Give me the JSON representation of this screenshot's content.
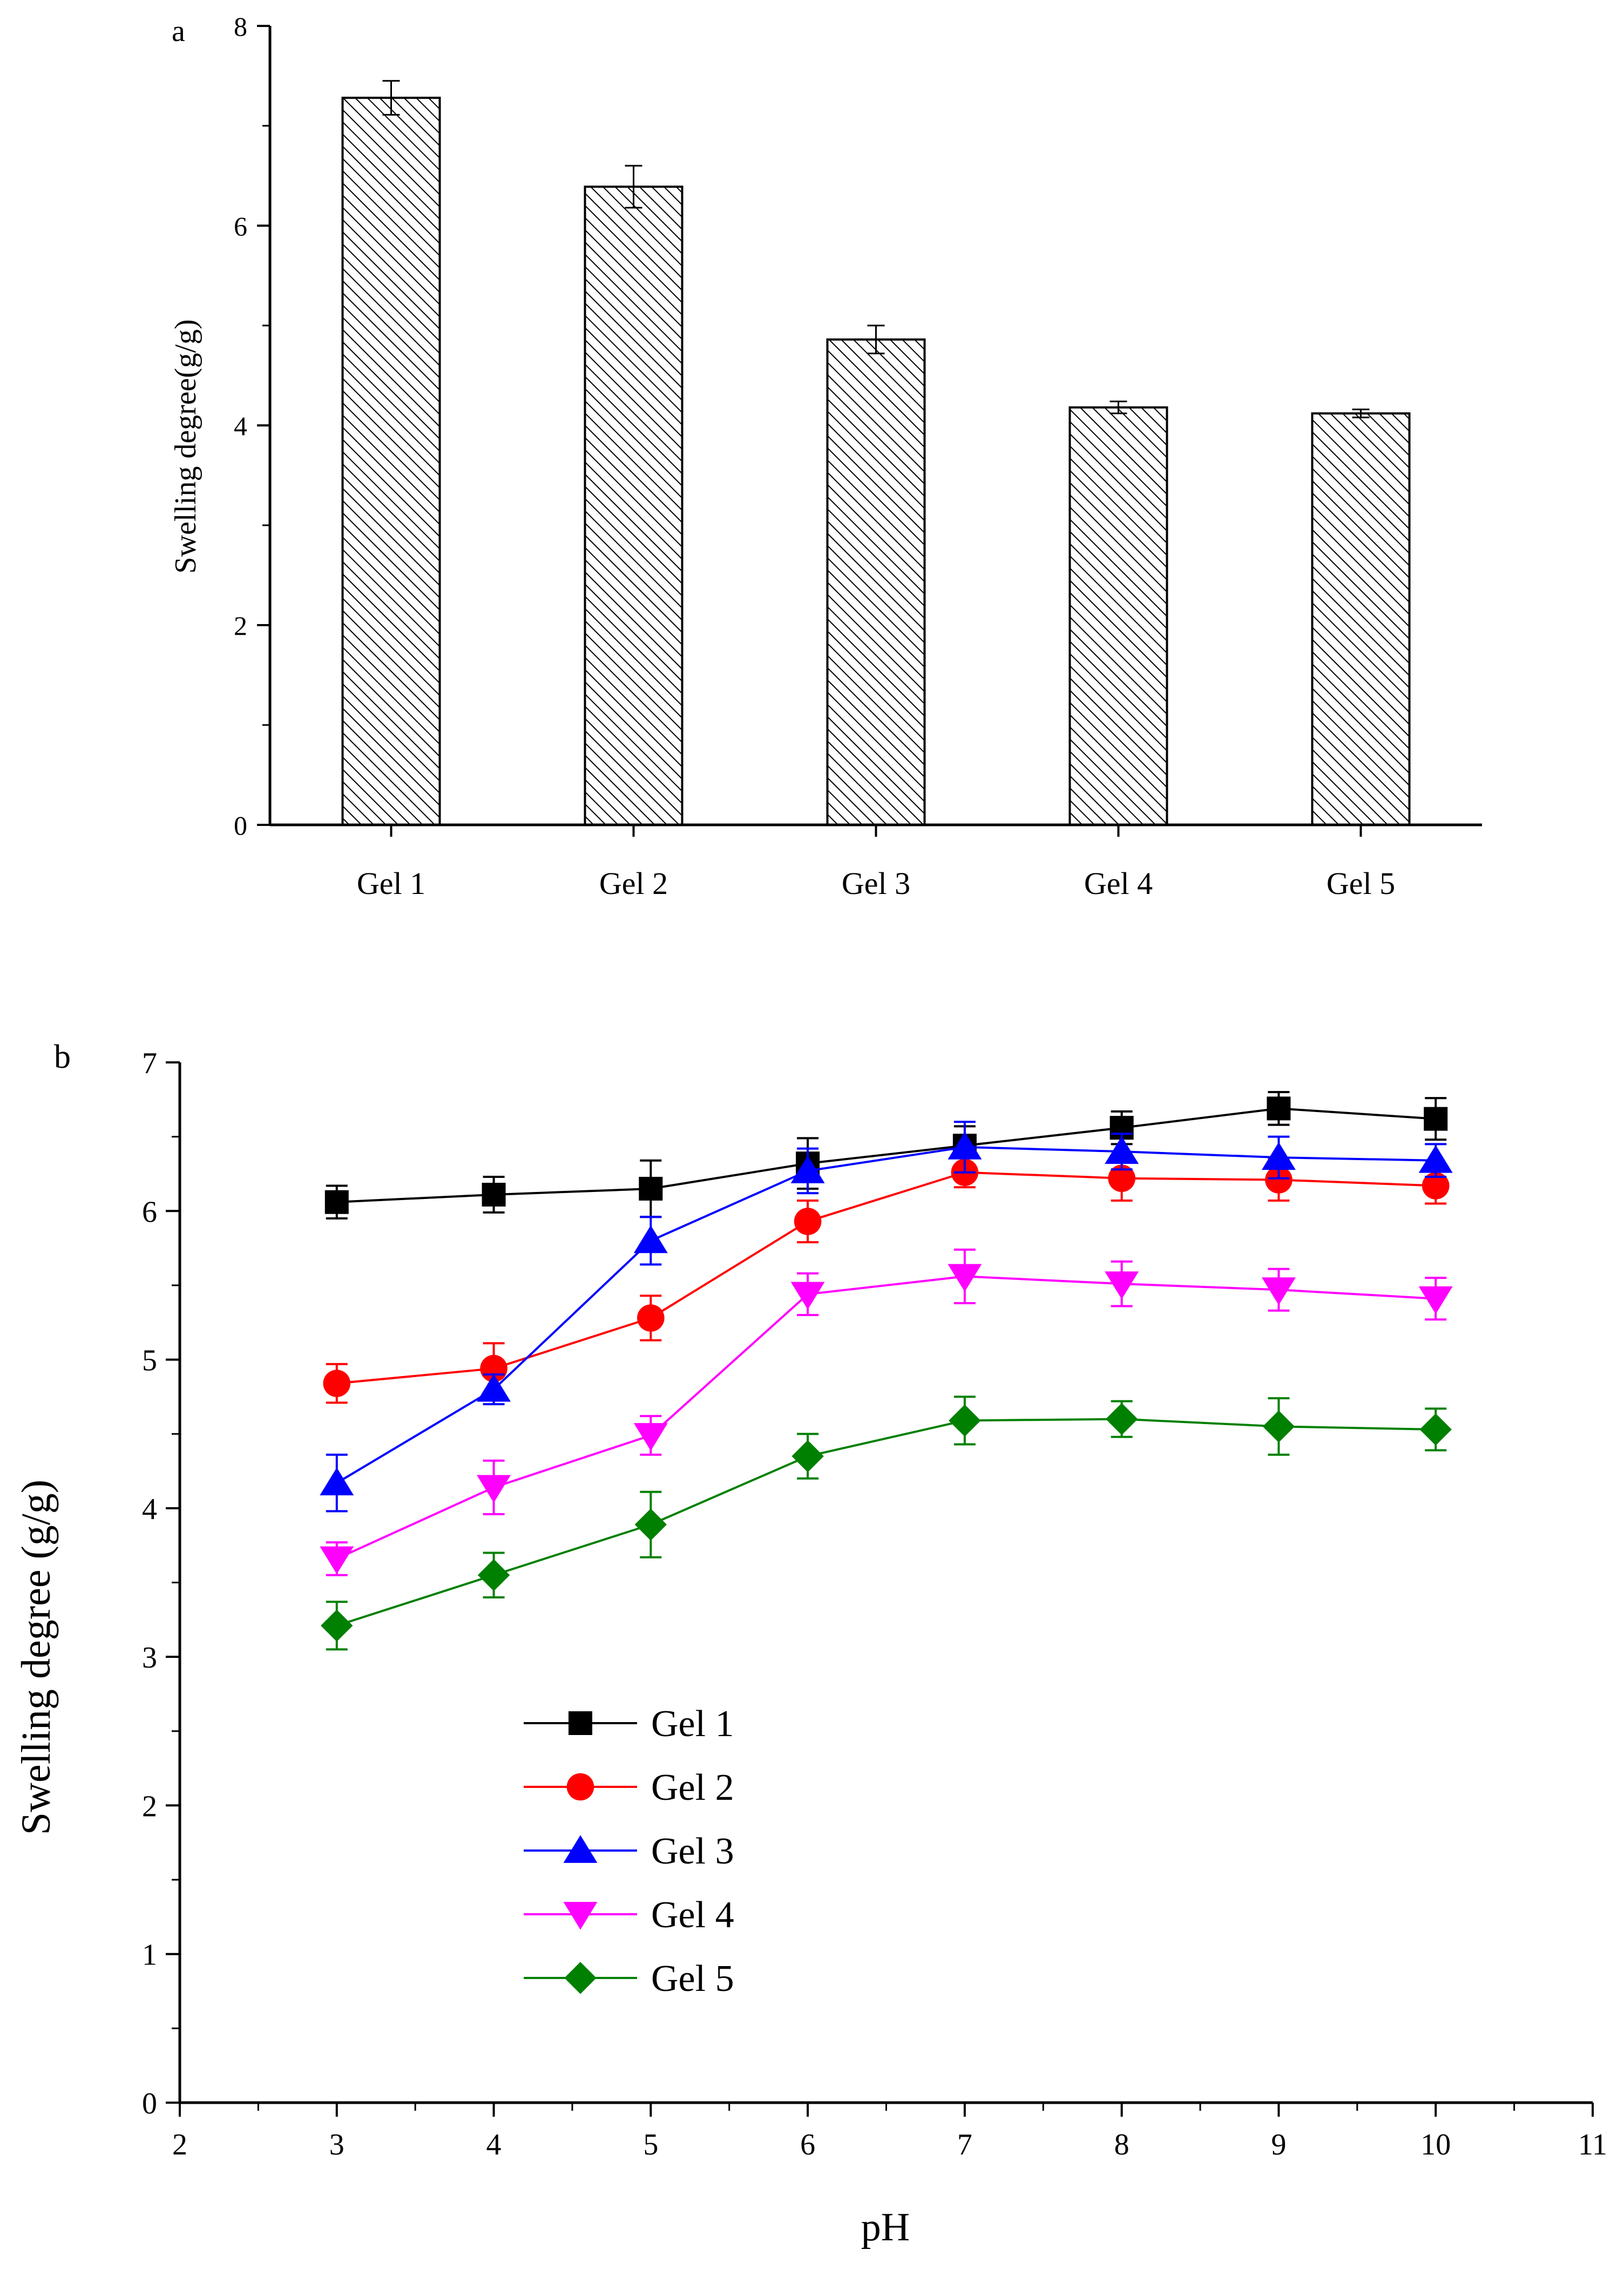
{
  "chart_data": [
    {
      "type": "bar",
      "panel_label": "a",
      "categories": [
        "Gel 1",
        "Gel 2",
        "Gel 3",
        "Gel 4",
        "Gel 5"
      ],
      "values": [
        7.28,
        6.39,
        4.86,
        4.18,
        4.12
      ],
      "errors": [
        0.17,
        0.21,
        0.14,
        0.06,
        0.04
      ],
      "title": "",
      "xlabel": "",
      "ylabel": "Swelling degree(g/g)",
      "ylim": [
        0,
        8
      ],
      "yticks": [
        0,
        2,
        4,
        6,
        8
      ],
      "bar_fill": "diagonal-hatch",
      "grid": false,
      "legend": "none"
    },
    {
      "type": "line",
      "panel_label": "b",
      "title": "",
      "xlabel": "pH",
      "ylabel": "Swelling degree (g/g)",
      "xlim": [
        2,
        11
      ],
      "ylim": [
        0,
        7
      ],
      "xticks": [
        2,
        3,
        4,
        5,
        6,
        7,
        8,
        9,
        10,
        11
      ],
      "yticks": [
        0,
        1,
        2,
        3,
        4,
        5,
        6,
        7
      ],
      "x": [
        3,
        4,
        5,
        6,
        7,
        8,
        9,
        10
      ],
      "grid": false,
      "legend": "lower-left",
      "series": [
        {
          "name": "Gel 1",
          "color": "#000000",
          "marker": "square",
          "values": [
            6.06,
            6.11,
            6.15,
            6.32,
            6.44,
            6.56,
            6.69,
            6.62
          ],
          "errors": [
            0.11,
            0.12,
            0.19,
            0.17,
            0.13,
            0.11,
            0.11,
            0.14
          ]
        },
        {
          "name": "Gel 2",
          "color": "#ff0000",
          "marker": "circle",
          "values": [
            4.84,
            4.94,
            5.28,
            5.93,
            6.26,
            6.22,
            6.21,
            6.17
          ],
          "errors": [
            0.13,
            0.17,
            0.15,
            0.14,
            0.1,
            0.15,
            0.14,
            0.12
          ]
        },
        {
          "name": "Gel 3",
          "color": "#0000ff",
          "marker": "triangle-up",
          "values": [
            4.17,
            4.8,
            5.8,
            6.27,
            6.43,
            6.4,
            6.36,
            6.34
          ],
          "errors": [
            0.19,
            0.1,
            0.16,
            0.15,
            0.17,
            0.12,
            0.14,
            0.11
          ]
        },
        {
          "name": "Gel 4",
          "color": "#ff00ff",
          "marker": "triangle-down",
          "values": [
            3.66,
            4.14,
            4.49,
            5.44,
            5.56,
            5.51,
            5.47,
            5.41
          ],
          "errors": [
            0.11,
            0.18,
            0.13,
            0.14,
            0.18,
            0.15,
            0.14,
            0.14
          ]
        },
        {
          "name": "Gel 5",
          "color": "#008000",
          "marker": "diamond",
          "values": [
            3.21,
            3.55,
            3.89,
            4.35,
            4.59,
            4.6,
            4.55,
            4.53
          ],
          "errors": [
            0.16,
            0.15,
            0.22,
            0.15,
            0.16,
            0.12,
            0.19,
            0.14
          ]
        }
      ]
    }
  ]
}
